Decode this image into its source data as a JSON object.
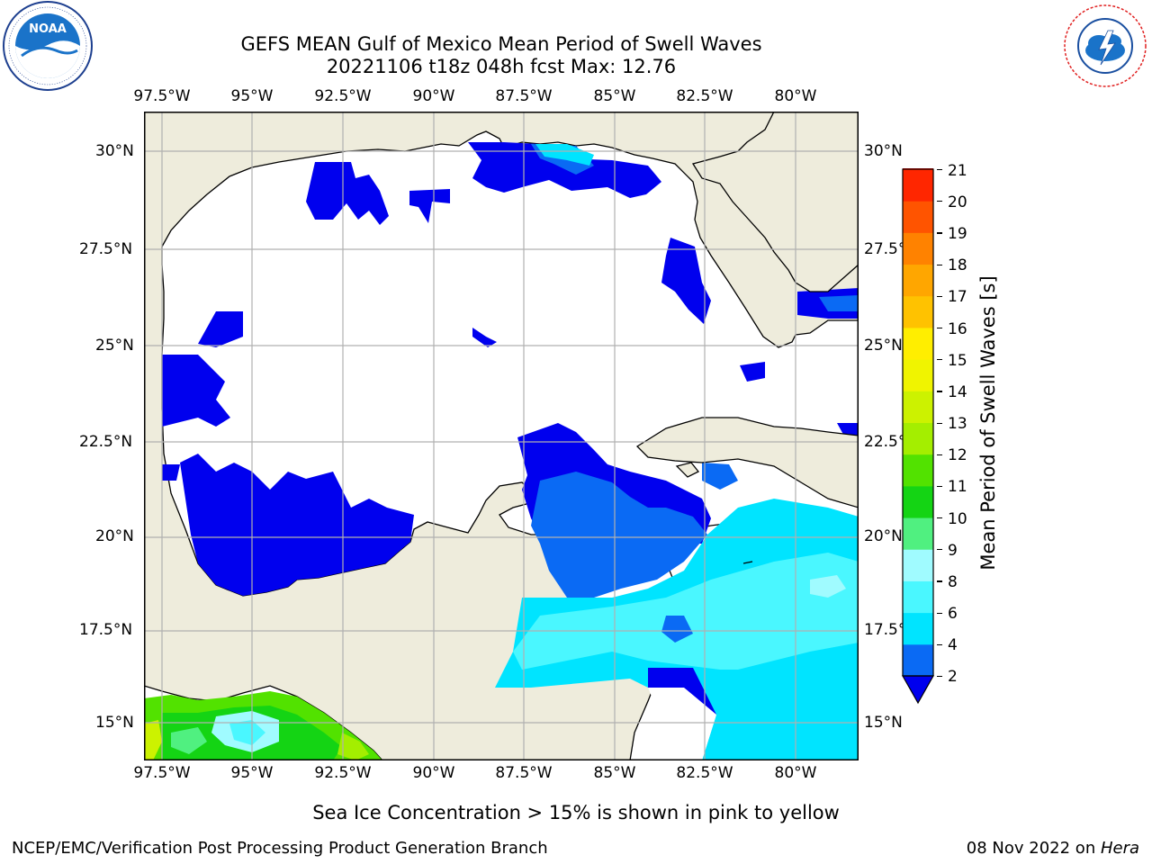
{
  "title": {
    "line1": "GEFS MEAN Gulf of Mexico Mean Period of Swell Waves",
    "line2": "20221106 t18z 048h fcst   Max: 12.76"
  },
  "logos": {
    "left": {
      "text": "NOAA",
      "ring_text": "NATIONAL OCEANIC AND ATMOSPHERIC ADMINISTRATION · U.S. DEPARTMENT OF COMMERCE"
    },
    "right": {
      "ring_text": "NATIONAL WEATHER SERVICE"
    }
  },
  "map": {
    "lon_ticks": [
      "97.5°W",
      "95°W",
      "92.5°W",
      "90°W",
      "87.5°W",
      "85°W",
      "82.5°W",
      "80°W"
    ],
    "lat_ticks": [
      "30°N",
      "27.5°N",
      "25°N",
      "22.5°N",
      "20°N",
      "17.5°N",
      "15°N"
    ],
    "extent": {
      "lon_min": -98,
      "lon_max": -78.3,
      "lat_min": 14,
      "lat_max": 31
    },
    "colors": {
      "land": "#eeecdc",
      "ocean_nodata": "#ffffff",
      "grid": "#b0b0b0"
    }
  },
  "colorbar": {
    "label": "Mean Period of Swell Waves [s]",
    "levels": [
      "21",
      "20",
      "19",
      "18",
      "17",
      "16",
      "15",
      "14",
      "13",
      "12",
      "11",
      "10",
      "9",
      "8",
      "6",
      "4",
      "2"
    ],
    "colors_bottom_to_top": [
      "#0a6af4",
      "#00e4ff",
      "#4af7ff",
      "#a0fbff",
      "#50f080",
      "#14d414",
      "#52e200",
      "#a4ee00",
      "#ccf200",
      "#f0f400",
      "#ffee00",
      "#ffc200",
      "#ffa600",
      "#ff8200",
      "#ff5400",
      "#ff2600"
    ],
    "under_color": "#0000ee"
  },
  "notes": {
    "sea_ice": "Sea Ice Concentration > 15% is shown in pink to yellow"
  },
  "footer": {
    "left": "NCEP/EMC/Verification Post Processing Product Generation Branch",
    "date": "08 Nov 2022 on ",
    "host": "Hera"
  }
}
